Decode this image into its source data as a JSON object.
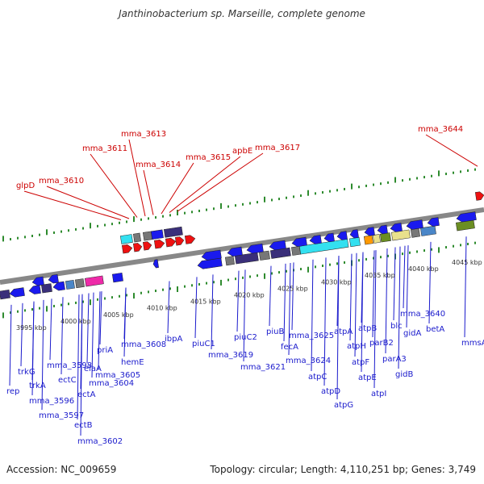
{
  "title": "Janthinobacterium sp. Marseille, complete genome",
  "footer": {
    "accession": "Accession: NC_009659",
    "topology": "Topology: circular; Length: 4,110,251 bp; Genes: 3,749"
  },
  "colors": {
    "forward_label": "#cc0000",
    "reverse_label": "#1a1acc",
    "ruler_ticks": "#2e8b2e",
    "backbone": "#888888",
    "gene_blue": "#1a1aee",
    "gene_navy": "#3a2f7a",
    "gene_gray": "#777777",
    "gene_cyan": "#33e0f0",
    "gene_magenta": "#ee2aa8",
    "gene_orange": "#ff9900",
    "gene_khaki": "#e8e08c",
    "gene_olive": "#6b8e23",
    "gene_steel": "#4a86c8",
    "gene_red": "#ee1111"
  },
  "kbp_labels": [
    "3995 kbp",
    "4000 kbp",
    "4005 kbp",
    "4010 kbp",
    "4015 kbp",
    "4020 kbp",
    "4025 kbp",
    "4030 kbp",
    "4035 kbp",
    "4040 kbp",
    "4045 kbp"
  ],
  "forward_labels": [
    "glpD",
    "mma_3610",
    "mma_3611",
    "mma_3613",
    "mma_3614",
    "mma_3615",
    "apbE",
    "mma_3617",
    "mma_3644"
  ],
  "reverse_labels": [
    "rep",
    "trkG",
    "trkA",
    "mma_3596",
    "mma_3597",
    "mma_3598",
    "ectC",
    "ectA",
    "ectB",
    "mma_3602",
    "elaA",
    "mma_3604",
    "mma_3605",
    "priA",
    "hemE",
    "mma_3608",
    "ibpA",
    "piuC1",
    "mma_3619",
    "piuC2",
    "mma_3621",
    "piuB",
    "fecA",
    "mma_3624",
    "mma_3625",
    "atpC",
    "atpD",
    "atpG",
    "atpA",
    "atpH",
    "atpF",
    "atpE",
    "atpB",
    "atpI",
    "parB2",
    "parA3",
    "gidB",
    "blc",
    "mma_3640",
    "gidA",
    "betA",
    "mmsA"
  ]
}
